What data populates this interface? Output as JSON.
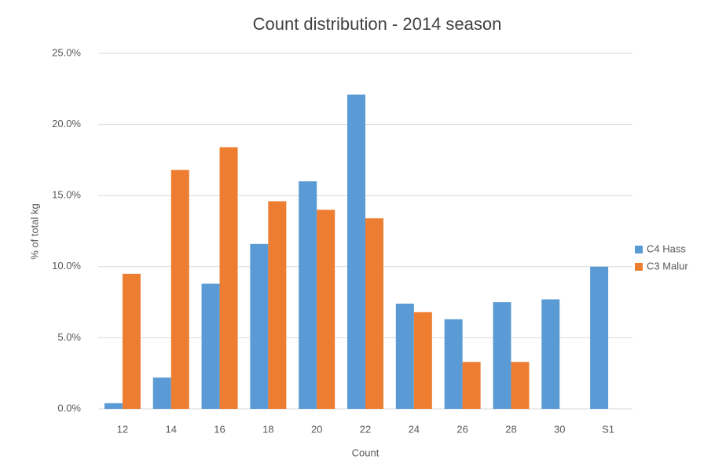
{
  "chart_data": {
    "type": "bar",
    "title": "Count distribution - 2014 season",
    "x_label": "Count",
    "y_label": "% of total kg",
    "categories": [
      "12",
      "14",
      "16",
      "18",
      "20",
      "22",
      "24",
      "26",
      "28",
      "30",
      "S1"
    ],
    "series": [
      {
        "name": "C4 Hass",
        "color": "#5b9bd5",
        "values": [
          0.4,
          2.2,
          8.8,
          11.6,
          16.0,
          22.1,
          7.4,
          6.3,
          7.5,
          7.7,
          10.0
        ]
      },
      {
        "name": "C3 Malur",
        "color": "#ed7d31",
        "values": [
          9.5,
          16.8,
          18.4,
          14.6,
          14.0,
          13.4,
          6.8,
          3.3,
          3.3,
          null,
          null
        ]
      }
    ],
    "ylim": [
      0,
      25
    ],
    "yticks": [
      {
        "value": 0,
        "label": "0.0%"
      },
      {
        "value": 5,
        "label": "5.0%"
      },
      {
        "value": 10,
        "label": "10.0%"
      },
      {
        "value": 15,
        "label": "15.0%"
      },
      {
        "value": 20,
        "label": "20.0%"
      },
      {
        "value": 25,
        "label": "25.0%"
      }
    ],
    "grid": true,
    "legend": "right"
  }
}
